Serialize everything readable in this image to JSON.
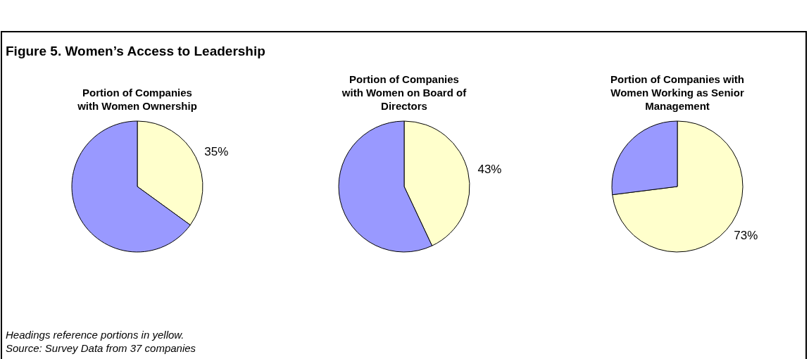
{
  "chart_data": [
    {
      "type": "other",
      "title": "Figure 5. Women’s Access to Leadership",
      "annotations": [
        "Headings reference portions in yellow.",
        "Source: Survey Data from 37 companies"
      ]
    },
    {
      "type": "pie",
      "title": "Portion of Companies with Women Ownership",
      "categories": [
        null,
        null
      ],
      "values": [
        35,
        65
      ],
      "colors": [
        "#ffffcc",
        "#9999ff"
      ],
      "value_labels": [
        "35%",
        null
      ],
      "legend": false
    },
    {
      "type": "pie",
      "title": "Portion of Companies with Women on Board of Directors",
      "categories": [
        null,
        null
      ],
      "values": [
        43,
        57
      ],
      "colors": [
        "#ffffcc",
        "#9999ff"
      ],
      "value_labels": [
        "43%",
        null
      ],
      "legend": false
    },
    {
      "type": "pie",
      "title": "Portion of Companies with Women Working as Senior Management",
      "categories": [
        null,
        null
      ],
      "values": [
        73,
        27
      ],
      "colors": [
        "#ffffcc",
        "#9999ff"
      ],
      "value_labels": [
        "73%",
        null
      ],
      "legend": false
    }
  ]
}
